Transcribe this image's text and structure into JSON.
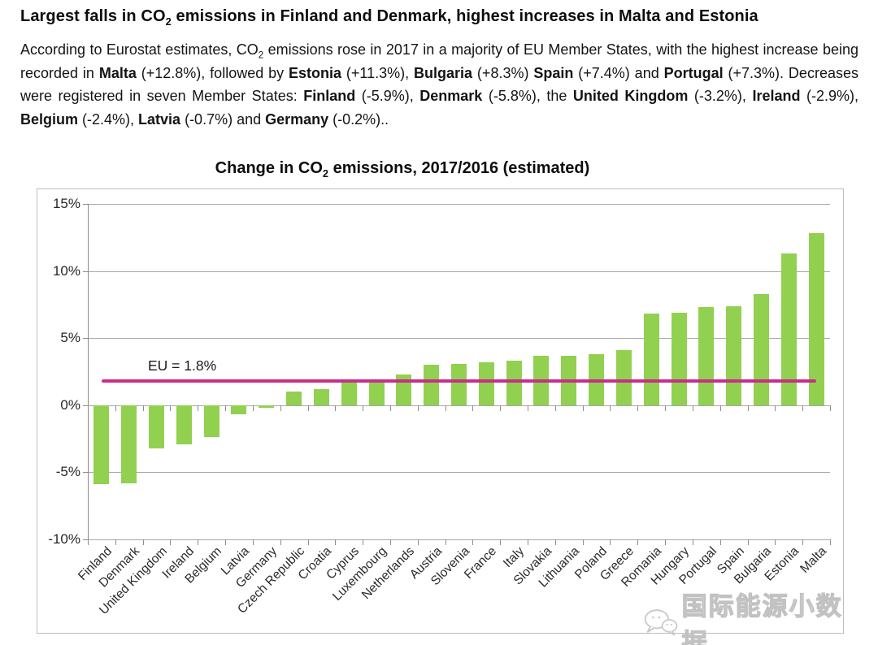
{
  "article": {
    "title_segments": [
      {
        "text": "Largest falls in CO",
        "bold": true
      },
      {
        "text": "2",
        "bold": true,
        "sub": true
      },
      {
        "text": " emissions in Finland and Denmark, highest increases in Malta and Estonia",
        "bold": true
      }
    ],
    "paragraph_segments": [
      {
        "text": "According to Eurostat estimates, CO"
      },
      {
        "text": "2",
        "sub": true
      },
      {
        "text": " emissions rose in 2017 in a majority of EU Member States, with the highest increase being recorded in "
      },
      {
        "text": "Malta",
        "bold": true
      },
      {
        "text": " (+12.8%), followed by "
      },
      {
        "text": "Estonia",
        "bold": true
      },
      {
        "text": " (+11.3%), "
      },
      {
        "text": "Bulgaria",
        "bold": true
      },
      {
        "text": " (+8.3%) "
      },
      {
        "text": "Spain",
        "bold": true
      },
      {
        "text": " (+7.4%) and "
      },
      {
        "text": "Portugal",
        "bold": true
      },
      {
        "text": " (+7.3%). Decreases were registered in seven Member States: "
      },
      {
        "text": "Finland",
        "bold": true
      },
      {
        "text": " (-5.9%), "
      },
      {
        "text": "Denmark",
        "bold": true
      },
      {
        "text": " (-5.8%), the "
      },
      {
        "text": "United Kingdom",
        "bold": true
      },
      {
        "text": " (-3.2%), "
      },
      {
        "text": "Ireland",
        "bold": true
      },
      {
        "text": " (-2.9%), "
      },
      {
        "text": "Belgium",
        "bold": true
      },
      {
        "text": " (-2.4%), "
      },
      {
        "text": "Latvia",
        "bold": true
      },
      {
        "text": " (-0.7%) and "
      },
      {
        "text": "Germany",
        "bold": true
      },
      {
        "text": " (-0.2%).."
      }
    ]
  },
  "chart_title_segments": [
    {
      "text": "Change in CO",
      "bold": true
    },
    {
      "text": "2",
      "bold": true,
      "sub": true
    },
    {
      "text": " emissions, 2017/2016 (estimated)",
      "bold": true
    }
  ],
  "chart_data": {
    "type": "bar",
    "title": "Change in CO2 emissions, 2017/2016 (estimated)",
    "categories": [
      "Finland",
      "Denmark",
      "United Kingdom",
      "Ireland",
      "Belgium",
      "Latvia",
      "Germany",
      "Czech Republic",
      "Croatia",
      "Cyprus",
      "Luxembourg",
      "Netherlands",
      "Austria",
      "Slovenia",
      "France",
      "Italy",
      "Slovakia",
      "Lithuania",
      "Poland",
      "Greece",
      "Romania",
      "Hungary",
      "Portugal",
      "Spain",
      "Bulgaria",
      "Estonia",
      "Malta"
    ],
    "values": [
      -5.9,
      -5.8,
      -3.2,
      -2.9,
      -2.4,
      -0.7,
      -0.2,
      1.0,
      1.2,
      1.7,
      1.8,
      2.3,
      3.0,
      3.1,
      3.2,
      3.3,
      3.7,
      3.7,
      3.8,
      4.1,
      6.8,
      6.9,
      7.3,
      7.4,
      8.3,
      11.3,
      12.8
    ],
    "xlabel": "",
    "ylabel": "",
    "ylim": [
      -10,
      15
    ],
    "yticks": [
      15,
      10,
      5,
      0,
      -5,
      -10
    ],
    "ytick_format": "{v}%",
    "grid": true,
    "legend": "none",
    "sort": "ascending",
    "xtick_rotation": 45,
    "bar_color": "#92D050",
    "gridline_color": "#a8a8a8",
    "reference_line": {
      "label": "EU = 1.8%",
      "value": 1.8,
      "color": "#C92D8C"
    }
  },
  "watermark": {
    "text": "国际能源小数据",
    "logo": "wechat-chat-bubbles-icon"
  }
}
